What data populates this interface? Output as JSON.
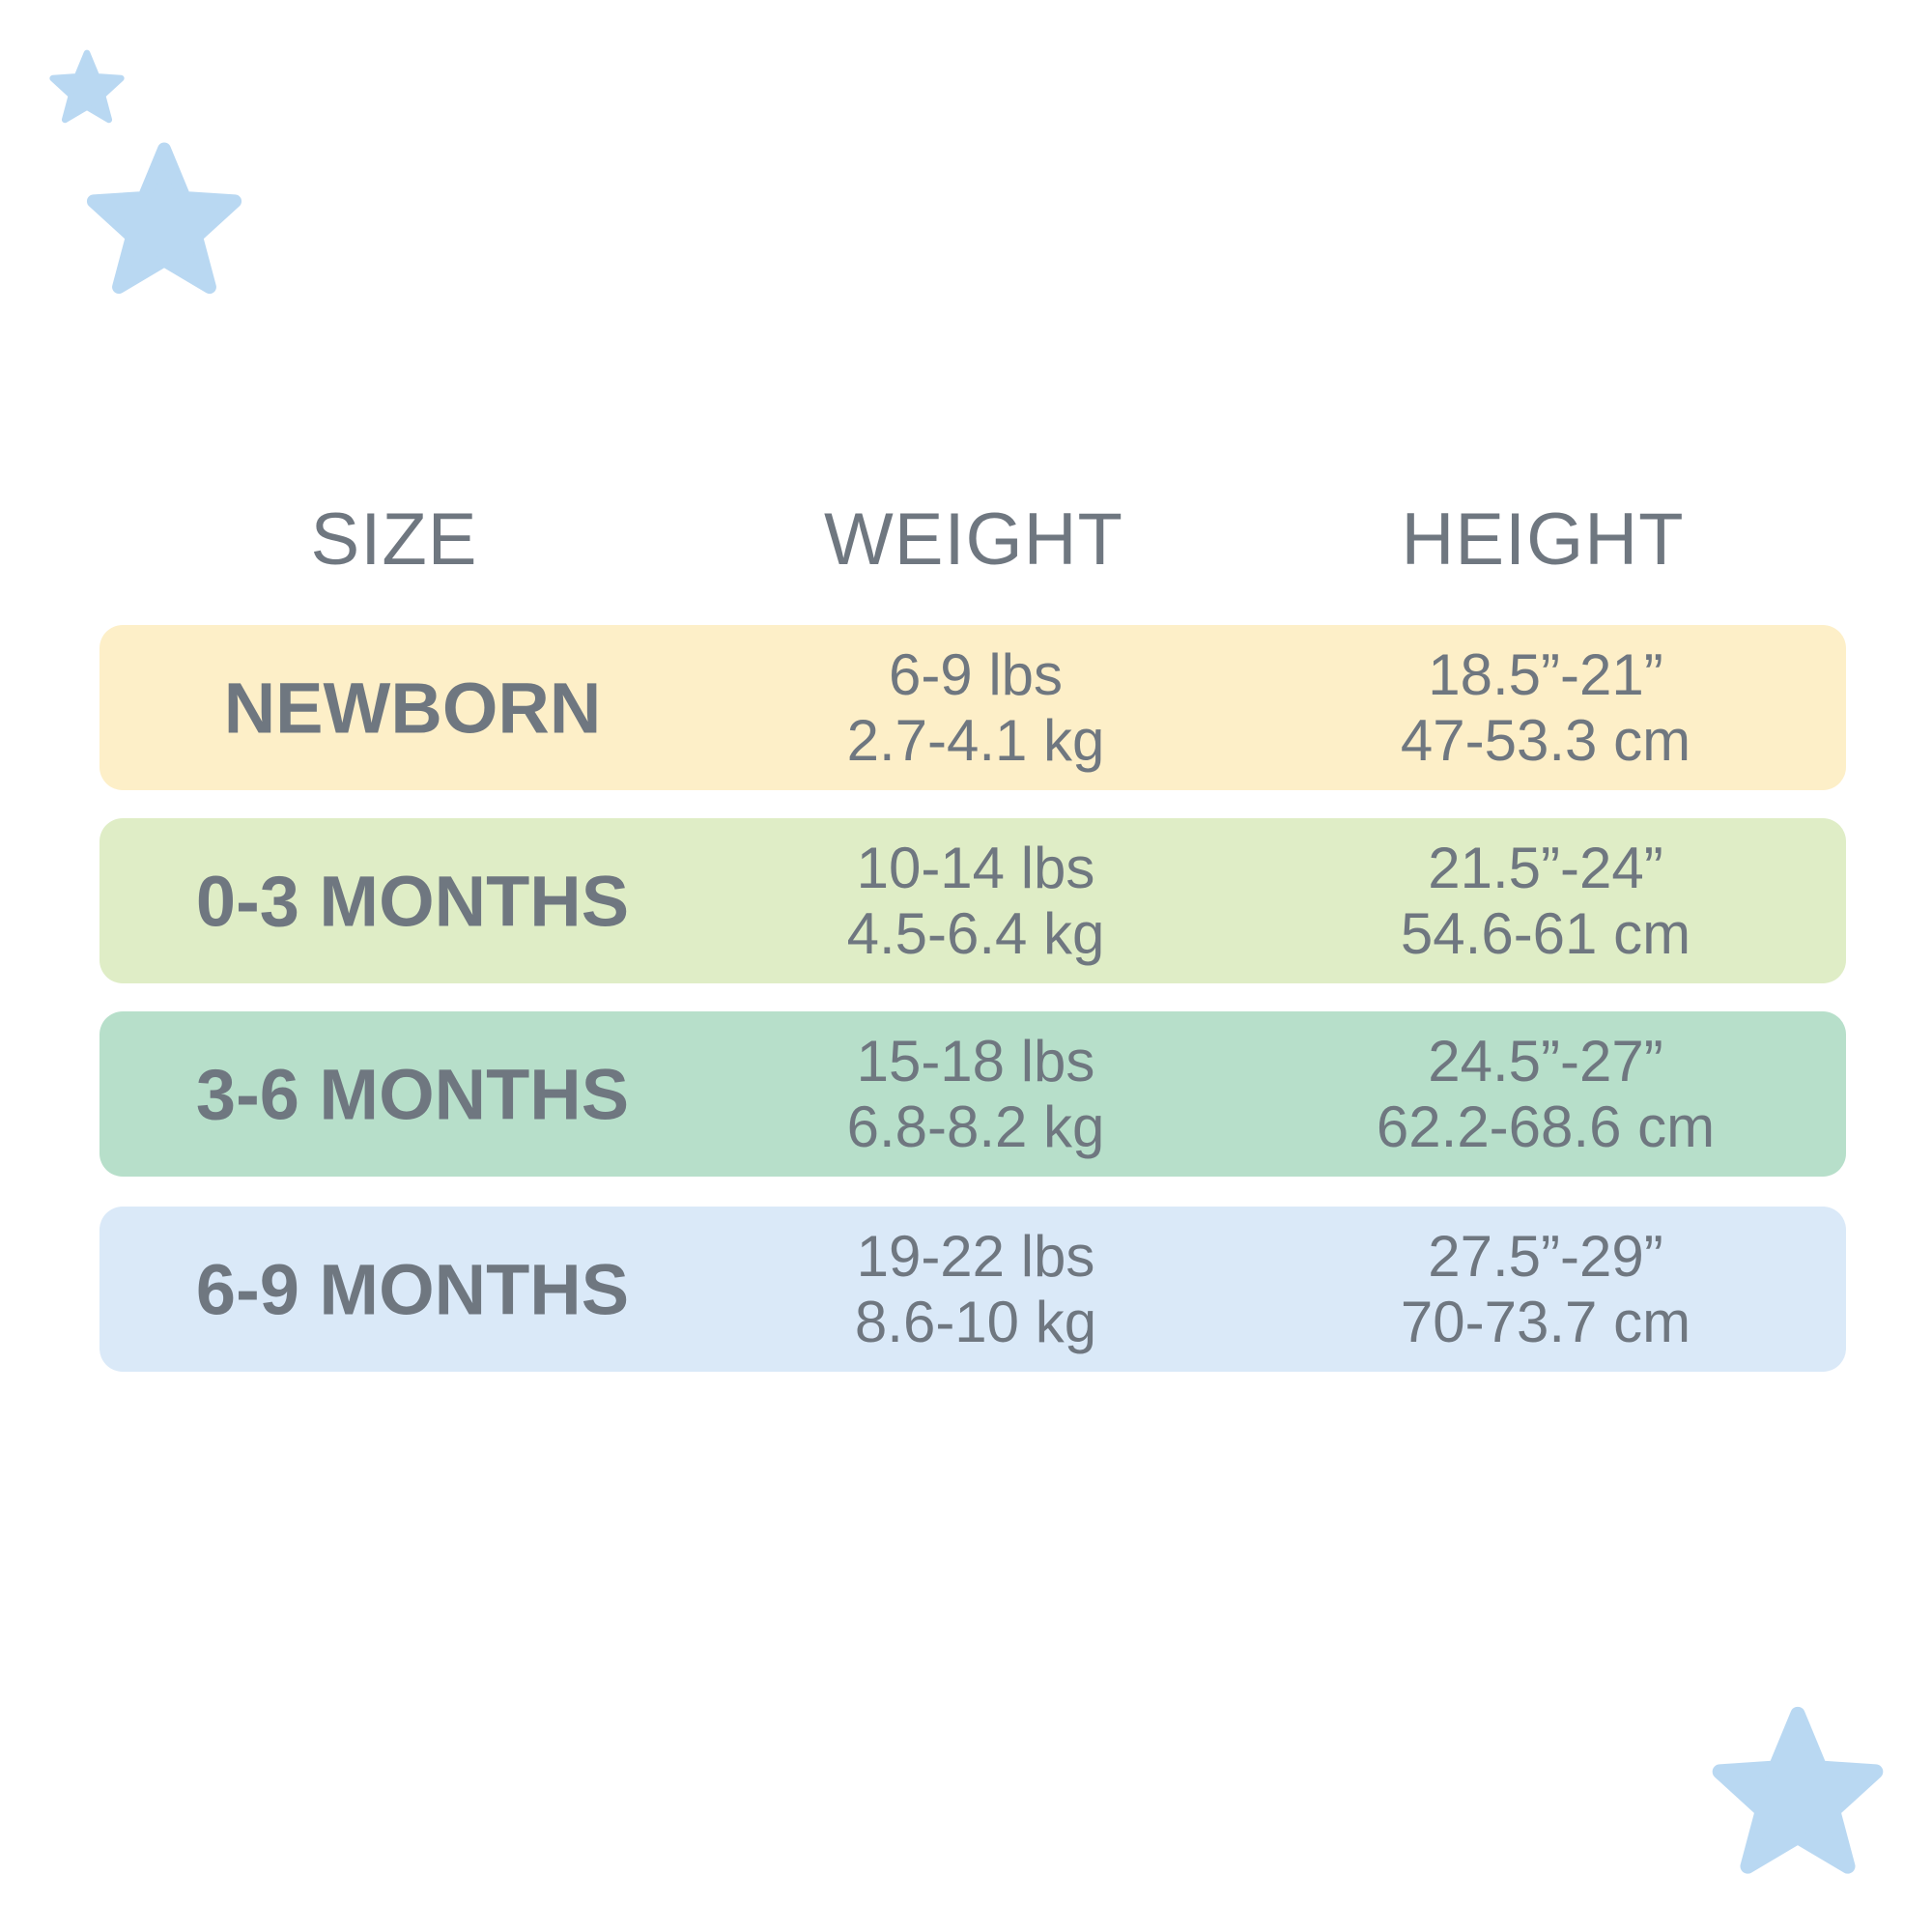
{
  "colors": {
    "text": "#6f7780",
    "star": "#b9d8f2"
  },
  "headers": {
    "size": "SIZE",
    "weight": "WEIGHT",
    "height": "HEIGHT"
  },
  "rows": [
    {
      "size": "NEWBORN",
      "weight_lbs": "6-9 lbs",
      "weight_kg": "2.7-4.1 kg",
      "height_in": "18.5”-21”",
      "height_cm": "47-53.3 cm",
      "color": "#fdefc8"
    },
    {
      "size": "0-3 MONTHS",
      "weight_lbs": "10-14 lbs",
      "weight_kg": "4.5-6.4 kg",
      "height_in": "21.5”-24”",
      "height_cm": "54.6-61 cm",
      "color": "#dfedc6"
    },
    {
      "size": "3-6 MONTHS",
      "weight_lbs": "15-18 lbs",
      "weight_kg": "6.8-8.2 kg",
      "height_in": "24.5”-27”",
      "height_cm": "62.2-68.6 cm",
      "color": "#b7dfca"
    },
    {
      "size": "6-9 MONTHS",
      "weight_lbs": "19-22 lbs",
      "weight_kg": "8.6-10 kg",
      "height_in": "27.5”-29”",
      "height_cm": "70-73.7 cm",
      "color": "#dae9f8"
    }
  ]
}
